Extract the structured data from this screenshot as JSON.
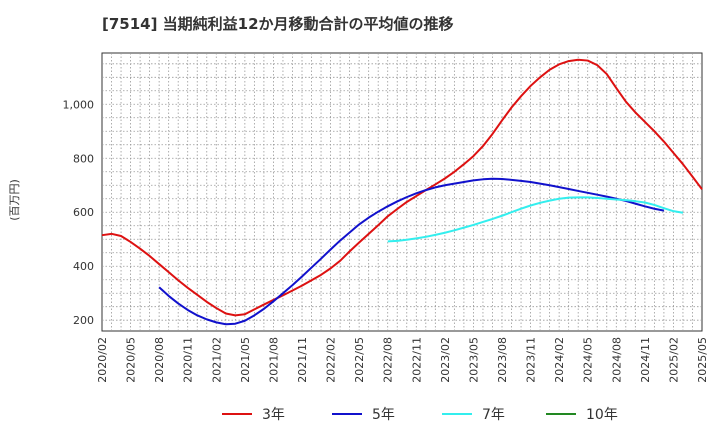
{
  "chart_data": {
    "type": "line",
    "title": "[7514]  当期純利益12か月移動合計の平均値の推移",
    "ylabel": "(百万円)",
    "ylim": [
      160,
      1190
    ],
    "yticks": [
      200,
      400,
      600,
      800,
      1000
    ],
    "ytick_labels": [
      "200",
      "400",
      "600",
      "800",
      "1,000"
    ],
    "xlim": [
      "2020-02",
      "2025-05"
    ],
    "xtick_labels": [
      "2020/02",
      "2020/05",
      "2020/08",
      "2020/11",
      "2021/02",
      "2021/05",
      "2021/08",
      "2021/11",
      "2022/02",
      "2022/05",
      "2022/08",
      "2022/11",
      "2023/02",
      "2023/05",
      "2023/08",
      "2023/11",
      "2024/02",
      "2024/05",
      "2024/08",
      "2024/11",
      "2025/02",
      "2025/05"
    ],
    "grid": true,
    "legend_position": "bottom",
    "series": [
      {
        "name": "3年",
        "color": "#dd1111",
        "start": "2020-02",
        "values": [
          515,
          520,
          512,
          490,
          465,
          438,
          408,
          378,
          348,
          320,
          294,
          268,
          245,
          225,
          218,
          222,
          240,
          258,
          275,
          292,
          310,
          328,
          348,
          368,
          392,
          420,
          455,
          488,
          520,
          552,
          585,
          612,
          638,
          660,
          682,
          703,
          725,
          750,
          778,
          808,
          845,
          890,
          940,
          988,
          1030,
          1068,
          1100,
          1128,
          1148,
          1160,
          1165,
          1162,
          1145,
          1112,
          1060,
          1010,
          970,
          935,
          900,
          862,
          820,
          778,
          732,
          685
        ]
      },
      {
        "name": "5年",
        "color": "#1111cc",
        "start": "2020-08",
        "values": [
          322,
          290,
          262,
          238,
          218,
          203,
          192,
          185,
          187,
          198,
          218,
          242,
          270,
          300,
          330,
          362,
          395,
          428,
          462,
          495,
          525,
          555,
          580,
          602,
          622,
          640,
          656,
          670,
          682,
          692,
          700,
          706,
          712,
          718,
          722,
          724,
          723,
          720,
          716,
          712,
          706,
          700,
          693,
          686,
          679,
          672,
          665,
          658,
          650,
          642,
          632,
          622,
          613,
          606
        ]
      },
      {
        "name": "7年",
        "color": "#33eeee",
        "start": "2022-08",
        "values": [
          492,
          494,
          498,
          503,
          509,
          516,
          524,
          533,
          543,
          553,
          564,
          575,
          587,
          600,
          613,
          625,
          635,
          643,
          650,
          654,
          655,
          655,
          653,
          650,
          647,
          645,
          641,
          636,
          627,
          615,
          604,
          598
        ]
      },
      {
        "name": "10年",
        "color": "#228822",
        "start": "2020-02",
        "values": []
      }
    ]
  }
}
